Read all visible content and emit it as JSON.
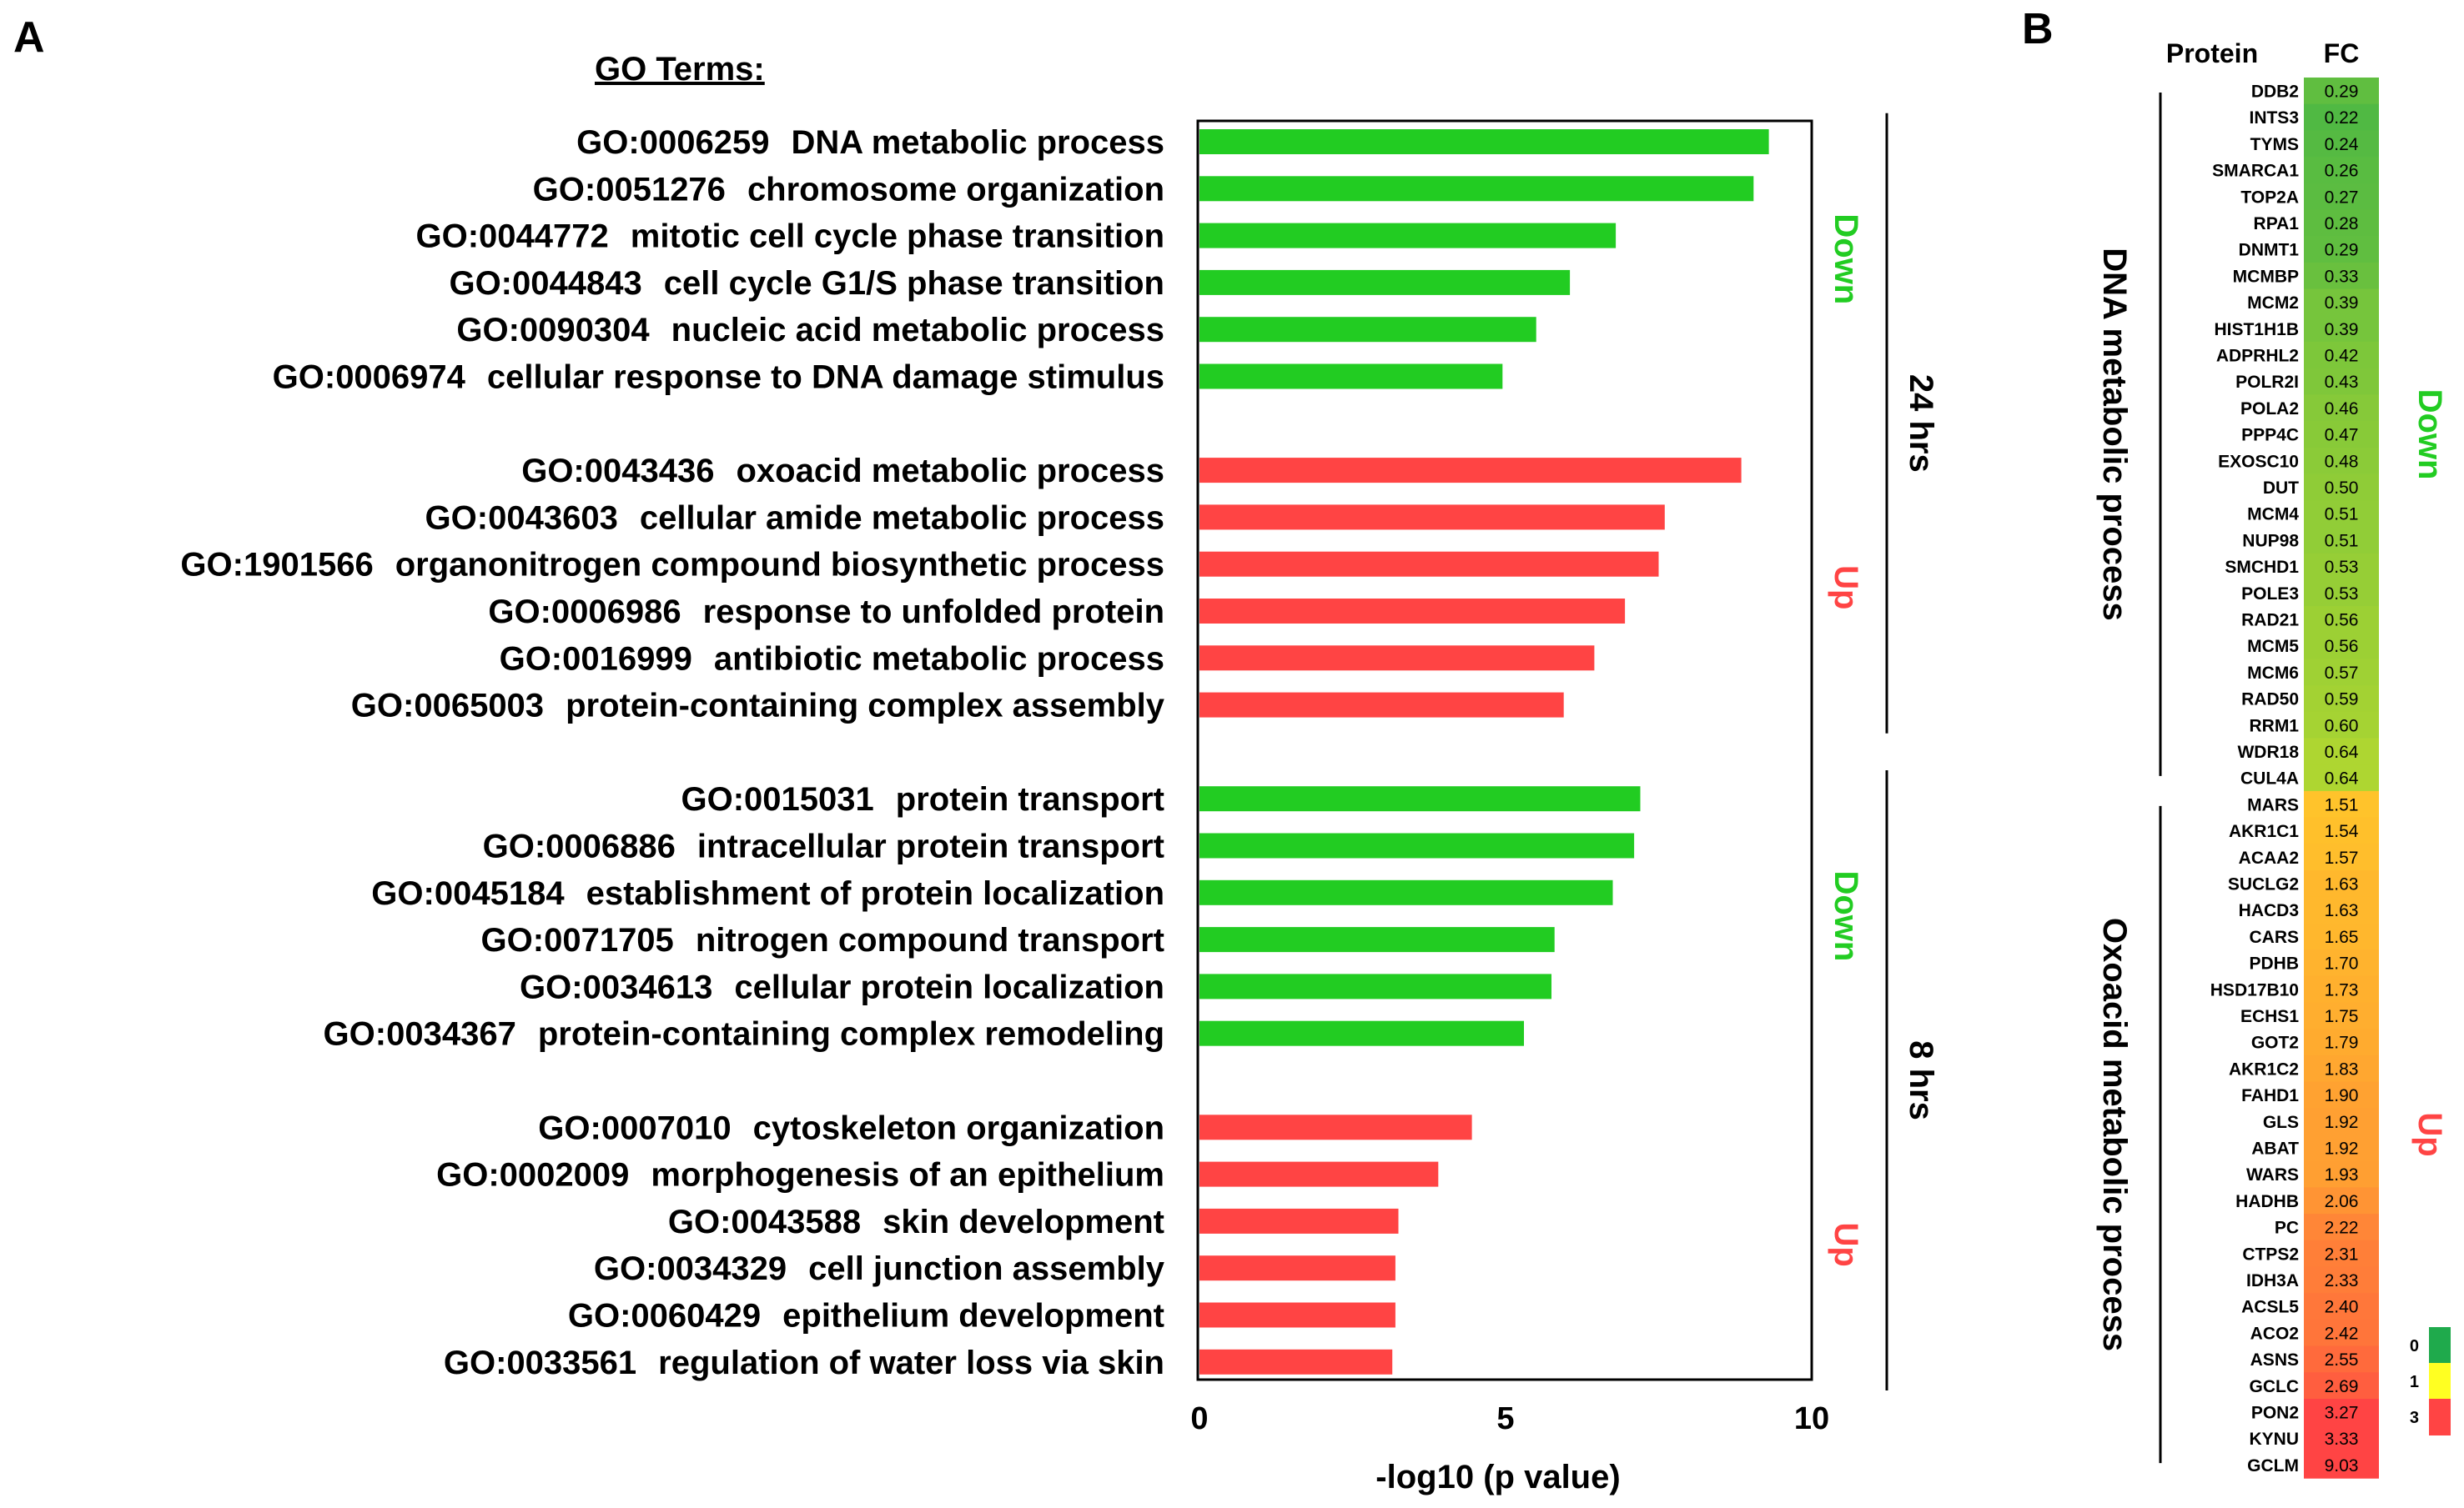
{
  "panels": {
    "a_label": "A",
    "b_label": "B"
  },
  "chart_data": [
    {
      "type": "bar",
      "orientation": "horizontal",
      "title": "GO Terms:",
      "xlabel": "-log10 (p value)",
      "ylabel": "",
      "xlim": [
        0,
        10
      ],
      "xticks": [
        "0",
        "5",
        "10"
      ],
      "grid": false,
      "colors": {
        "Down": "#22cc22",
        "Up": "#ff4444"
      },
      "groups": [
        {
          "time": "24 hrs",
          "direction": "Down",
          "items": [
            {
              "id": "GO:0006259",
              "term": "DNA metabolic process",
              "value": 9.3
            },
            {
              "id": "GO:0051276",
              "term": "chromosome organization",
              "value": 9.05
            },
            {
              "id": "GO:0044772",
              "term": "mitotic cell cycle phase transition",
              "value": 6.8
            },
            {
              "id": "GO:0044843",
              "term": "cell cycle G1/S phase transition",
              "value": 6.05
            },
            {
              "id": "GO:0090304",
              "term": "nucleic acid metabolic process",
              "value": 5.5
            },
            {
              "id": "GO:0006974",
              "term": "cellular response to DNA damage stimulus",
              "value": 4.95
            }
          ]
        },
        {
          "time": "24 hrs",
          "direction": "Up",
          "items": [
            {
              "id": "GO:0043436",
              "term": "oxoacid metabolic process",
              "value": 8.85
            },
            {
              "id": "GO:0043603",
              "term": "cellular amide metabolic process",
              "value": 7.6
            },
            {
              "id": "GO:1901566",
              "term": "organonitrogen compound biosynthetic process",
              "value": 7.5
            },
            {
              "id": "GO:0006986",
              "term": "response to unfolded protein",
              "value": 6.95
            },
            {
              "id": "GO:0016999",
              "term": "antibiotic metabolic process",
              "value": 6.45
            },
            {
              "id": "GO:0065003",
              "term": "protein-containing complex assembly",
              "value": 5.95
            }
          ]
        },
        {
          "time": "8 hrs",
          "direction": "Down",
          "items": [
            {
              "id": "GO:0015031",
              "term": "protein transport",
              "value": 7.2
            },
            {
              "id": "GO:0006886",
              "term": "intracellular protein transport",
              "value": 7.1
            },
            {
              "id": "GO:0045184",
              "term": "establishment of protein localization",
              "value": 6.75
            },
            {
              "id": "GO:0071705",
              "term": "nitrogen compound transport",
              "value": 5.8
            },
            {
              "id": "GO:0034613",
              "term": "cellular protein localization",
              "value": 5.75
            },
            {
              "id": "GO:0034367",
              "term": "protein-containing complex remodeling",
              "value": 5.3
            }
          ]
        },
        {
          "time": "8 hrs",
          "direction": "Up",
          "items": [
            {
              "id": "GO:0007010",
              "term": "cytoskeleton organization",
              "value": 4.45
            },
            {
              "id": "GO:0002009",
              "term": "morphogenesis of an epithelium",
              "value": 3.9
            },
            {
              "id": "GO:0043588",
              "term": "skin development",
              "value": 3.25
            },
            {
              "id": "GO:0034329",
              "term": "cell junction assembly",
              "value": 3.2
            },
            {
              "id": "GO:0060429",
              "term": "epithelium development",
              "value": 3.2
            },
            {
              "id": "GO:0033561",
              "term": "regulation of water loss via skin",
              "value": 3.15
            }
          ]
        }
      ],
      "time_labels": [
        "24 hrs",
        "8 hrs"
      ],
      "direction_labels": {
        "down": "Down",
        "up": "Up"
      }
    },
    {
      "type": "heatmap",
      "column_headers": [
        "Protein",
        "FC"
      ],
      "colorscale": {
        "ticks": [
          "0",
          "1",
          "3"
        ],
        "colors": [
          "#1faa4c",
          "#ffff22",
          "#ff4444"
        ]
      },
      "groups": [
        {
          "process": "DNA metabolic process",
          "direction": "Down",
          "rows": [
            [
              "DDB2",
              "0.29"
            ],
            [
              "INTS3",
              "0.22"
            ],
            [
              "TYMS",
              "0.24"
            ],
            [
              "SMARCA1",
              "0.26"
            ],
            [
              "TOP2A",
              "0.27"
            ],
            [
              "RPA1",
              "0.28"
            ],
            [
              "DNMT1",
              "0.29"
            ],
            [
              "MCMBP",
              "0.33"
            ],
            [
              "MCM2",
              "0.39"
            ],
            [
              "HIST1H1B",
              "0.39"
            ],
            [
              "ADPRHL2",
              "0.42"
            ],
            [
              "POLR2I",
              "0.43"
            ],
            [
              "POLA2",
              "0.46"
            ],
            [
              "PPP4C",
              "0.47"
            ],
            [
              "EXOSC10",
              "0.48"
            ],
            [
              "DUT",
              "0.50"
            ],
            [
              "MCM4",
              "0.51"
            ],
            [
              "NUP98",
              "0.51"
            ],
            [
              "SMCHD1",
              "0.53"
            ],
            [
              "POLE3",
              "0.53"
            ],
            [
              "RAD21",
              "0.56"
            ],
            [
              "MCM5",
              "0.56"
            ],
            [
              "MCM6",
              "0.57"
            ],
            [
              "RAD50",
              "0.59"
            ],
            [
              "RRM1",
              "0.60"
            ],
            [
              "WDR18",
              "0.64"
            ],
            [
              "CUL4A",
              "0.64"
            ]
          ]
        },
        {
          "process": "Oxoacid metabolic process",
          "direction": "Up",
          "rows": [
            [
              "MARS",
              "1.51"
            ],
            [
              "AKR1C1",
              "1.54"
            ],
            [
              "ACAA2",
              "1.57"
            ],
            [
              "SUCLG2",
              "1.63"
            ],
            [
              "HACD3",
              "1.63"
            ],
            [
              "CARS",
              "1.65"
            ],
            [
              "PDHB",
              "1.70"
            ],
            [
              "HSD17B10",
              "1.73"
            ],
            [
              "ECHS1",
              "1.75"
            ],
            [
              "GOT2",
              "1.79"
            ],
            [
              "AKR1C2",
              "1.83"
            ],
            [
              "FAHD1",
              "1.90"
            ],
            [
              "GLS",
              "1.92"
            ],
            [
              "ABAT",
              "1.92"
            ],
            [
              "WARS",
              "1.93"
            ],
            [
              "HADHB",
              "2.06"
            ],
            [
              "PC",
              "2.22"
            ],
            [
              "CTPS2",
              "2.31"
            ],
            [
              "IDH3A",
              "2.33"
            ],
            [
              "ACSL5",
              "2.40"
            ],
            [
              "ACO2",
              "2.42"
            ],
            [
              "ASNS",
              "2.55"
            ],
            [
              "GCLC",
              "2.69"
            ],
            [
              "PON2",
              "3.27"
            ],
            [
              "KYNU",
              "3.33"
            ],
            [
              "GCLM",
              "9.03"
            ]
          ]
        }
      ]
    }
  ]
}
